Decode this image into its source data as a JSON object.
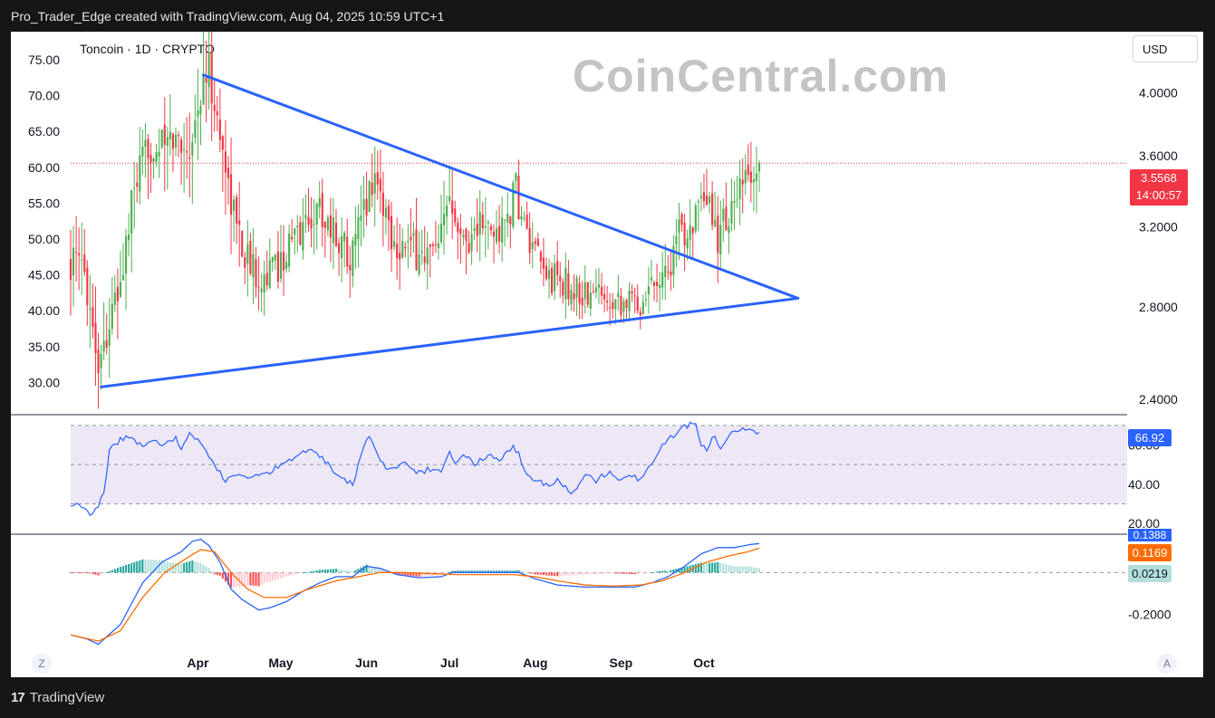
{
  "header": {
    "attribution": "Pro_Trader_Edge created with TradingView.com, Aug 04, 2025 10:59 UTC+1"
  },
  "symbol_line": "Toncoin · 1D · CRYPTO",
  "watermark": "CoinCentral.com",
  "currency_button": "USD",
  "price_tag": {
    "price": "3.5568",
    "countdown": "14:00:57",
    "color": "#f23645"
  },
  "rsi_tag": "66.92",
  "macd_tags": {
    "macd": "0.1388",
    "signal": "0.1169",
    "histogram": "0.0219"
  },
  "corner_buttons": {
    "left": "Z",
    "right": "A"
  },
  "footer": {
    "brand": "TradingView",
    "logo_text": "17"
  },
  "colors": {
    "up": "#4caf50",
    "down": "#f23645",
    "trendline": "#2962ff",
    "rsi": "#2962ff",
    "macd": "#2962ff",
    "signal": "#ff6d00",
    "rsi_band": "#ede7f6"
  },
  "chart_data": [
    {
      "type": "candlestick",
      "title": "Toncoin · 1D · CRYPTO",
      "x_ticks": [
        "Apr",
        "May",
        "Jun",
        "Jul",
        "Aug",
        "Sep",
        "Oct"
      ],
      "left_axis_ticks": [
        "75.00",
        "70.00",
        "65.00",
        "60.00",
        "55.00",
        "50.00",
        "45.00",
        "40.00",
        "35.00",
        "30.00"
      ],
      "right_axis_ticks": [
        "4.0000",
        "3.6000",
        "3.2000",
        "2.8000",
        "2.4000"
      ],
      "right_axis_scale": "log",
      "price_range": [
        2.35,
        4.2
      ],
      "close_path": [
        [
          0,
          3.02
        ],
        [
          5,
          2.98
        ],
        [
          10,
          2.55
        ],
        [
          18,
          2.9
        ],
        [
          23,
          3.4
        ],
        [
          28,
          3.65
        ],
        [
          33,
          3.66
        ],
        [
          38,
          3.7
        ],
        [
          43,
          3.65
        ],
        [
          48,
          4.05
        ],
        [
          50,
          4.15
        ],
        [
          53,
          3.8
        ],
        [
          56,
          3.55
        ],
        [
          58,
          3.35
        ],
        [
          62,
          3.1
        ],
        [
          66,
          2.98
        ],
        [
          70,
          2.95
        ],
        [
          75,
          3.0
        ],
        [
          80,
          3.12
        ],
        [
          85,
          3.22
        ],
        [
          90,
          3.3
        ],
        [
          96,
          3.15
        ],
        [
          102,
          3.05
        ],
        [
          107,
          3.35
        ],
        [
          110,
          3.5
        ],
        [
          113,
          3.32
        ],
        [
          117,
          3.12
        ],
        [
          121,
          3.1
        ],
        [
          127,
          3.05
        ],
        [
          133,
          3.05
        ],
        [
          137,
          3.4
        ],
        [
          139,
          3.32
        ],
        [
          142,
          3.12
        ],
        [
          148,
          3.22
        ],
        [
          152,
          3.15
        ],
        [
          157,
          3.2
        ],
        [
          161,
          3.4
        ],
        [
          163,
          3.25
        ],
        [
          167,
          3.05
        ],
        [
          172,
          2.95
        ],
        [
          177,
          2.92
        ],
        [
          182,
          2.88
        ],
        [
          187,
          2.85
        ],
        [
          192,
          2.87
        ],
        [
          197,
          2.86
        ],
        [
          202,
          2.82
        ],
        [
          206,
          2.83
        ],
        [
          211,
          2.95
        ],
        [
          216,
          2.98
        ],
        [
          220,
          3.15
        ],
        [
          225,
          3.25
        ],
        [
          231,
          3.3
        ],
        [
          234,
          3.15
        ],
        [
          237,
          3.25
        ],
        [
          240,
          3.3
        ],
        [
          245,
          3.48
        ],
        [
          249,
          3.5
        ]
      ],
      "volatility_path": [
        [
          0,
          0.1
        ],
        [
          10,
          0.12
        ],
        [
          18,
          0.1
        ],
        [
          50,
          0.15
        ],
        [
          56,
          0.13
        ],
        [
          70,
          0.08
        ],
        [
          137,
          0.1
        ],
        [
          167,
          0.06
        ],
        [
          206,
          0.05
        ],
        [
          220,
          0.08
        ],
        [
          245,
          0.09
        ],
        [
          249,
          0.09
        ]
      ],
      "candle_count": 250,
      "last_price": 3.5568,
      "x_range_days": [
        0,
        370
      ],
      "trendlines": [
        {
          "name": "descending",
          "from": [
            48,
            4.12
          ],
          "to": [
            263,
            2.84
          ]
        },
        {
          "name": "ascending",
          "from": [
            11,
            2.45
          ],
          "to": [
            263,
            2.84
          ]
        }
      ],
      "x_tick_days": {
        "Apr": 46,
        "May": 76,
        "Jun": 107,
        "Jul": 137,
        "Aug": 168,
        "Sep": 199,
        "Oct": 229
      }
    },
    {
      "type": "line",
      "title": "RSI",
      "y_ticks": [
        "60.00",
        "40.00",
        "20.00"
      ],
      "levels": [
        70,
        50,
        30
      ],
      "y_range": [
        15,
        75
      ],
      "path": [
        [
          0,
          30
        ],
        [
          4,
          29
        ],
        [
          8,
          24
        ],
        [
          12,
          35
        ],
        [
          14,
          58
        ],
        [
          18,
          63
        ],
        [
          22,
          64
        ],
        [
          26,
          59
        ],
        [
          30,
          62
        ],
        [
          34,
          60
        ],
        [
          38,
          63
        ],
        [
          40,
          58
        ],
        [
          43,
          65
        ],
        [
          46,
          63
        ],
        [
          48,
          60
        ],
        [
          51,
          52
        ],
        [
          54,
          46
        ],
        [
          56,
          42
        ],
        [
          59,
          45
        ],
        [
          64,
          43
        ],
        [
          70,
          45
        ],
        [
          76,
          50
        ],
        [
          82,
          55
        ],
        [
          86,
          58
        ],
        [
          90,
          55
        ],
        [
          96,
          45
        ],
        [
          102,
          40
        ],
        [
          106,
          60
        ],
        [
          108,
          63
        ],
        [
          111,
          55
        ],
        [
          115,
          47
        ],
        [
          121,
          52
        ],
        [
          125,
          45
        ],
        [
          130,
          48
        ],
        [
          134,
          46
        ],
        [
          137,
          58
        ],
        [
          139,
          50
        ],
        [
          142,
          55
        ],
        [
          146,
          50
        ],
        [
          151,
          55
        ],
        [
          155,
          52
        ],
        [
          160,
          60
        ],
        [
          162,
          55
        ],
        [
          164,
          47
        ],
        [
          167,
          42
        ],
        [
          172,
          40
        ],
        [
          177,
          42
        ],
        [
          181,
          34
        ],
        [
          186,
          44
        ],
        [
          190,
          42
        ],
        [
          194,
          46
        ],
        [
          199,
          42
        ],
        [
          203,
          44
        ],
        [
          206,
          42
        ],
        [
          210,
          50
        ],
        [
          214,
          60
        ],
        [
          218,
          65
        ],
        [
          223,
          70
        ],
        [
          226,
          72
        ],
        [
          228,
          59
        ],
        [
          230,
          58
        ],
        [
          233,
          65
        ],
        [
          235,
          58
        ],
        [
          238,
          65
        ],
        [
          242,
          68
        ],
        [
          245,
          67
        ],
        [
          249,
          67
        ]
      ],
      "last_value": 66.92
    },
    {
      "type": "macd",
      "title": "MACD",
      "y_ticks": [
        "-0.2000"
      ],
      "y_range": [
        -0.36,
        0.18
      ],
      "macd_path": [
        [
          0,
          -0.3
        ],
        [
          6,
          -0.32
        ],
        [
          10,
          -0.345
        ],
        [
          18,
          -0.25
        ],
        [
          26,
          -0.05
        ],
        [
          33,
          0.05
        ],
        [
          40,
          0.1
        ],
        [
          44,
          0.15
        ],
        [
          47,
          0.16
        ],
        [
          50,
          0.13
        ],
        [
          54,
          0.05
        ],
        [
          58,
          -0.08
        ],
        [
          62,
          -0.13
        ],
        [
          68,
          -0.18
        ],
        [
          72,
          -0.17
        ],
        [
          78,
          -0.14
        ],
        [
          84,
          -0.09
        ],
        [
          90,
          -0.05
        ],
        [
          96,
          -0.02
        ],
        [
          102,
          -0.02
        ],
        [
          107,
          0.03
        ],
        [
          112,
          0.02
        ],
        [
          118,
          -0.01
        ],
        [
          126,
          -0.025
        ],
        [
          134,
          -0.02
        ],
        [
          138,
          0.0
        ],
        [
          146,
          0.0
        ],
        [
          154,
          0.0
        ],
        [
          162,
          0.0
        ],
        [
          168,
          -0.03
        ],
        [
          176,
          -0.06
        ],
        [
          186,
          -0.07
        ],
        [
          196,
          -0.07
        ],
        [
          204,
          -0.07
        ],
        [
          210,
          -0.05
        ],
        [
          216,
          -0.02
        ],
        [
          222,
          0.03
        ],
        [
          228,
          0.09
        ],
        [
          234,
          0.12
        ],
        [
          240,
          0.12
        ],
        [
          246,
          0.135
        ],
        [
          249,
          0.139
        ]
      ],
      "signal_path": [
        [
          0,
          -0.3
        ],
        [
          10,
          -0.33
        ],
        [
          18,
          -0.28
        ],
        [
          26,
          -0.12
        ],
        [
          34,
          0.0
        ],
        [
          42,
          0.07
        ],
        [
          47,
          0.11
        ],
        [
          52,
          0.1
        ],
        [
          58,
          0.0
        ],
        [
          64,
          -0.08
        ],
        [
          70,
          -0.12
        ],
        [
          78,
          -0.12
        ],
        [
          86,
          -0.08
        ],
        [
          96,
          -0.04
        ],
        [
          104,
          -0.02
        ],
        [
          112,
          0.0
        ],
        [
          120,
          0.0
        ],
        [
          130,
          -0.005
        ],
        [
          140,
          -0.01
        ],
        [
          150,
          -0.01
        ],
        [
          160,
          -0.01
        ],
        [
          168,
          -0.02
        ],
        [
          176,
          -0.04
        ],
        [
          186,
          -0.06
        ],
        [
          196,
          -0.065
        ],
        [
          206,
          -0.06
        ],
        [
          214,
          -0.04
        ],
        [
          222,
          0.0
        ],
        [
          230,
          0.05
        ],
        [
          238,
          0.08
        ],
        [
          245,
          0.1
        ],
        [
          249,
          0.117
        ]
      ],
      "last_values": {
        "macd": 0.1388,
        "signal": 0.1169,
        "histogram": 0.0219
      }
    }
  ]
}
